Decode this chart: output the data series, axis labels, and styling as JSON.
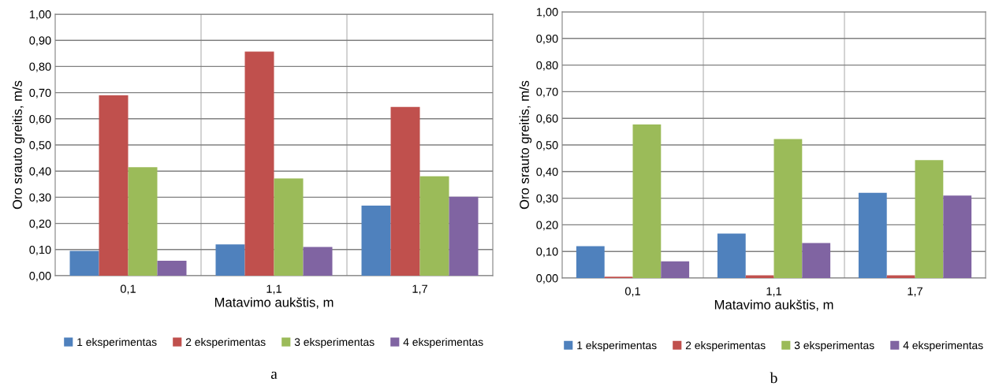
{
  "chart_data": [
    {
      "type": "bar",
      "xlabel": "Matavimo aukštis, m",
      "ylabel": "Oro srauto greitis, m/s",
      "categories": [
        "0,1",
        "1,1",
        "1,7"
      ],
      "series": [
        {
          "name": "1 eksperimentas",
          "color": "#4f81bd",
          "values": [
            0.095,
            0.12,
            0.268
          ]
        },
        {
          "name": "2 eksperimentas",
          "color": "#c0504d",
          "values": [
            0.69,
            0.857,
            0.645
          ]
        },
        {
          "name": "3 eksperimentas",
          "color": "#9bbb59",
          "values": [
            0.415,
            0.372,
            0.38
          ]
        },
        {
          "name": "4 eksperimentas",
          "color": "#8064a2",
          "values": [
            0.057,
            0.11,
            0.302
          ]
        }
      ],
      "ylim": [
        0,
        1
      ],
      "yticks": [
        {
          "value": 0,
          "label": "0,00"
        },
        {
          "value": 0.1,
          "label": "0,10"
        },
        {
          "value": 0.2,
          "label": "0,20"
        },
        {
          "value": 0.3,
          "label": "0,30"
        },
        {
          "value": 0.4,
          "label": "0,40"
        },
        {
          "value": 0.5,
          "label": "0,50"
        },
        {
          "value": 0.6,
          "label": "0,60"
        },
        {
          "value": 0.7,
          "label": "0,70"
        },
        {
          "value": 0.8,
          "label": "0,80"
        },
        {
          "value": 0.9,
          "label": "0,90"
        },
        {
          "value": 1.0,
          "label": "1,00"
        }
      ],
      "grid": true,
      "legend": "bottom",
      "annotations": [
        "a"
      ]
    },
    {
      "type": "bar",
      "xlabel": "Matavimo aukštis, m",
      "ylabel": "Oro srauto greitis, m/s",
      "categories": [
        "0,1",
        "1,1",
        "1,7"
      ],
      "series": [
        {
          "name": "1 eksperimentas",
          "color": "#4f81bd",
          "values": [
            0.12,
            0.167,
            0.32
          ]
        },
        {
          "name": "2 eksperimentas",
          "color": "#c0504d",
          "values": [
            0.005,
            0.01,
            0.01
          ]
        },
        {
          "name": "3 eksperimentas",
          "color": "#9bbb59",
          "values": [
            0.577,
            0.522,
            0.443
          ]
        },
        {
          "name": "4 eksperimentas",
          "color": "#8064a2",
          "values": [
            0.063,
            0.132,
            0.31
          ]
        }
      ],
      "ylim": [
        0,
        1
      ],
      "yticks": [
        {
          "value": 0,
          "label": "0,00"
        },
        {
          "value": 0.1,
          "label": "0,10"
        },
        {
          "value": 0.2,
          "label": "0,20"
        },
        {
          "value": 0.3,
          "label": "0,30"
        },
        {
          "value": 0.4,
          "label": "0,40"
        },
        {
          "value": 0.5,
          "label": "0,50"
        },
        {
          "value": 0.6,
          "label": "0,60"
        },
        {
          "value": 0.7,
          "label": "0,70"
        },
        {
          "value": 0.8,
          "label": "0,80"
        },
        {
          "value": 0.9,
          "label": "0,90"
        },
        {
          "value": 1.0,
          "label": "1,00"
        }
      ],
      "grid": true,
      "legend": "bottom",
      "annotations": [
        "b"
      ]
    }
  ]
}
